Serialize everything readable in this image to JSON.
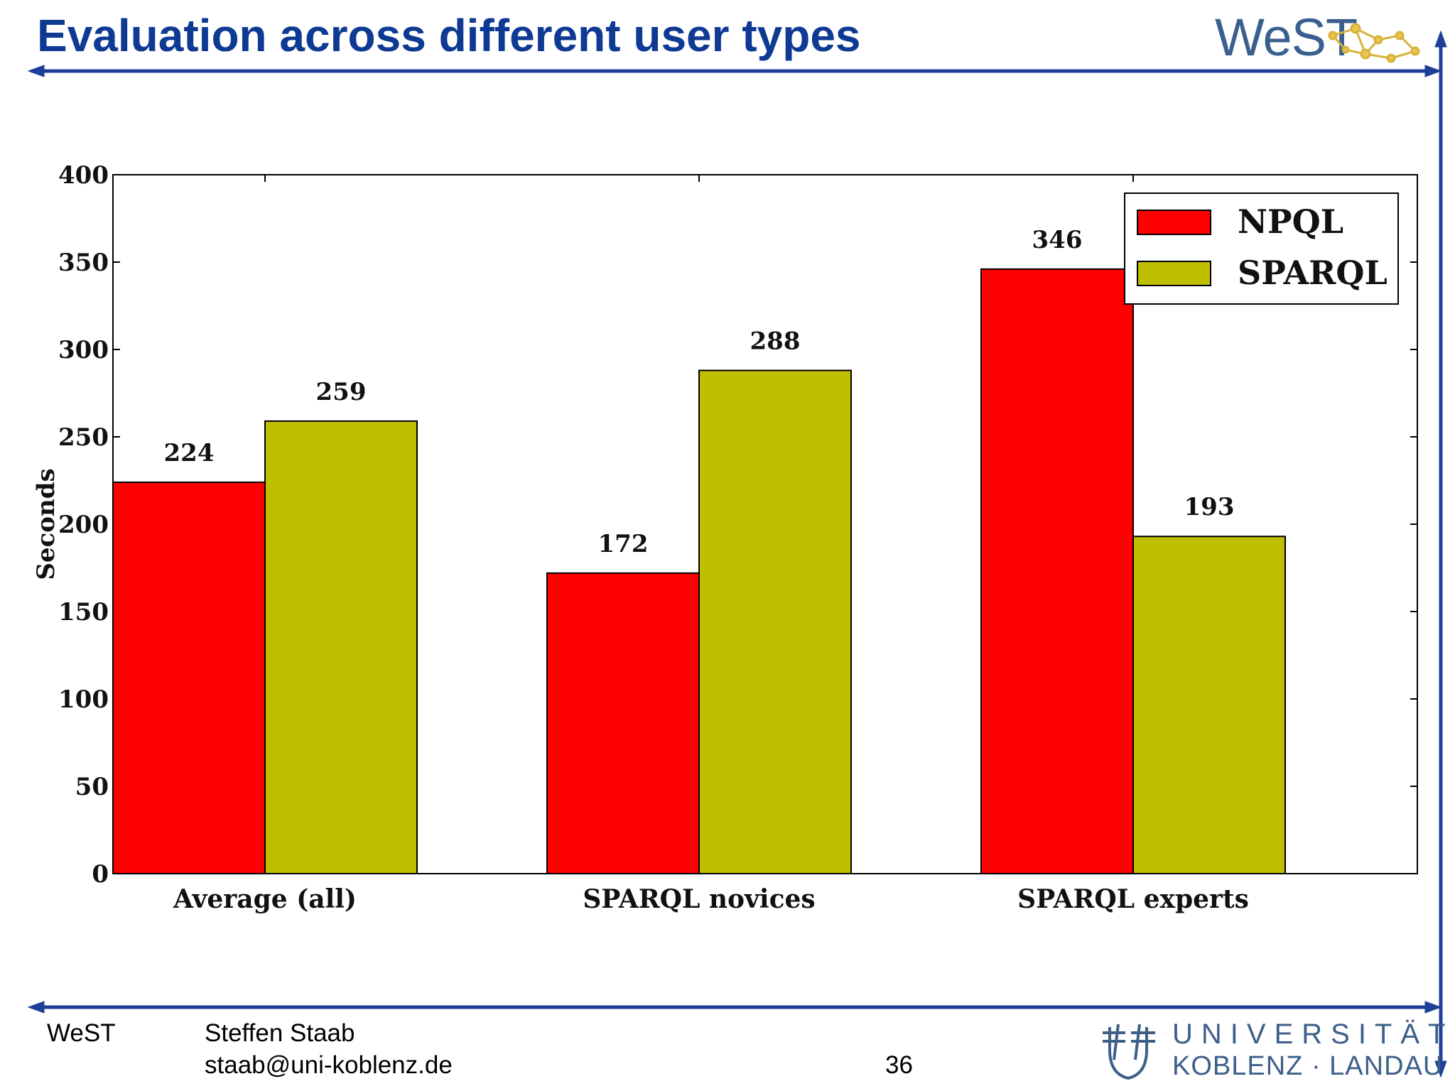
{
  "slide": {
    "title": "Evaluation across different user types",
    "logo_text": "WeST",
    "footer": {
      "org": "WeST",
      "author": "Steffen Staab",
      "email": "staab@uni-koblenz.de",
      "page_number": "36",
      "university_line1": "UNIVERSITÄT",
      "university_line2": "KOBLENZ · LANDAU"
    },
    "colors": {
      "title": "#0e3a93",
      "rule": "#1d3f97",
      "npql": "#ff0000",
      "sparql": "#bfbf00"
    }
  },
  "chart_data": {
    "type": "bar",
    "ylabel": "Seconds",
    "ylim": [
      0,
      400
    ],
    "yticks": [
      "0",
      "50",
      "100",
      "150",
      "200",
      "250",
      "300",
      "350",
      "400"
    ],
    "categories": [
      "Average (all)",
      "SPARQL novices",
      "SPARQL experts"
    ],
    "series": [
      {
        "name": "NPQL",
        "values": [
          224,
          172,
          346
        ],
        "color": "#ff0000"
      },
      {
        "name": "SPARQL",
        "values": [
          259,
          288,
          193
        ],
        "color": "#bfbf00"
      }
    ],
    "value_labels": [
      "224",
      "259",
      "172",
      "288",
      "346",
      "193"
    ],
    "legend": "top-right",
    "grid": false
  }
}
